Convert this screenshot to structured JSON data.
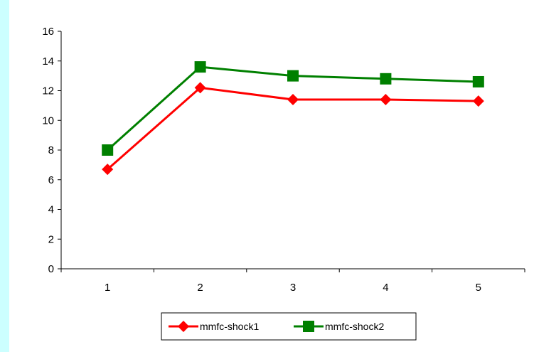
{
  "chart_data": {
    "type": "line",
    "title": "",
    "xlabel": "",
    "ylabel": "",
    "categories": [
      "1",
      "2",
      "3",
      "4",
      "5"
    ],
    "ylim": [
      0,
      16
    ],
    "yticks": [
      "0",
      "2",
      "4",
      "6",
      "8",
      "10",
      "12",
      "14",
      "16"
    ],
    "grid": false,
    "legend_position": "bottom",
    "series": [
      {
        "name": "mmfc-shock1",
        "values": [
          6.7,
          12.2,
          11.4,
          11.4,
          11.3
        ],
        "color": "#ff0000",
        "marker": "diamond"
      },
      {
        "name": "mmfc-shock2",
        "values": [
          8.0,
          13.6,
          13.0,
          12.8,
          12.6
        ],
        "color": "#008000",
        "marker": "square"
      }
    ]
  }
}
